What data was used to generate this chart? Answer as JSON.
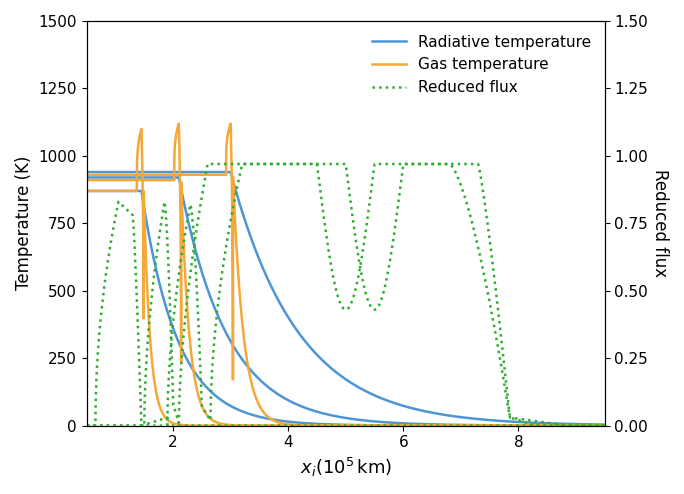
{
  "title": "",
  "xlabel": "$x_i(10^5\\,\\mathrm{km})$",
  "ylabel_left": "Temperature (K)",
  "ylabel_right": "Reduced flux",
  "xlim": [
    0.5,
    9.5
  ],
  "ylim_left": [
    0,
    1500
  ],
  "ylim_right": [
    0,
    1.5
  ],
  "xticks": [
    2,
    4,
    6,
    8
  ],
  "yticks_left": [
    0,
    250,
    500,
    750,
    1000,
    1250,
    1500
  ],
  "yticks_right": [
    0.0,
    0.25,
    0.5,
    0.75,
    1.0,
    1.25,
    1.5
  ],
  "color_blue": "#4C96D7",
  "color_orange": "#F4A83A",
  "color_green": "#2EAD2E",
  "legend_entries": [
    "Radiative temperature",
    "Gas temperature",
    "Reduced flux"
  ],
  "figsize": [
    6.84,
    4.94
  ],
  "dpi": 100,
  "lw": 1.8,
  "snap1_shock": 1.45,
  "snap2_shock": 2.1,
  "snap3_shock": 3.0,
  "rad_plateau": 870,
  "rad_plateau2": 920,
  "rad_plateau3": 940,
  "rad_decay1": 1.6,
  "rad_decay2": 1.2,
  "rad_decay3": 0.85,
  "gas_spike": 1100,
  "gas_spike2": 1120,
  "gas_spike3": 1120
}
